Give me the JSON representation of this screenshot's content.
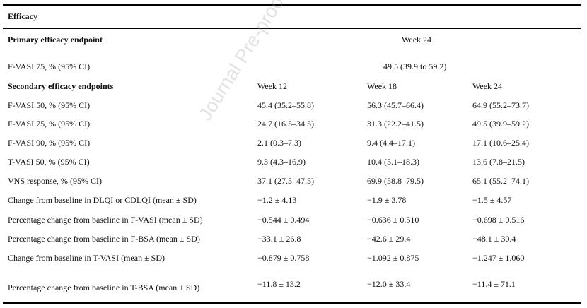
{
  "section_title": "Efficacy",
  "primary": {
    "label": "Primary efficacy endpoint",
    "week_header": "Week 24",
    "row_label": "F-VASI 75, % (95% CI)",
    "row_value": "49.5 (39.9 to 59.2)"
  },
  "secondary": {
    "label": "Secondary efficacy endpoints",
    "headers": [
      "Week 12",
      "Week 18",
      "Week 24"
    ],
    "rows": [
      {
        "label": "F-VASI 50, % (95% CI)",
        "values": [
          "45.4 (35.2–55.8)",
          "56.3 (45.7–66.4)",
          "64.9 (55.2–73.7)"
        ]
      },
      {
        "label": "F-VASI 75, % (95% CI)",
        "values": [
          "24.7 (16.5–34.5)",
          "31.3 (22.2–41.5)",
          "49.5 (39.9–59.2)"
        ]
      },
      {
        "label": "F-VASI 90, % (95% CI)",
        "values": [
          "2.1 (0.3–7.3)",
          "9.4 (4.4–17.1)",
          "17.1 (10.6–25.4)"
        ]
      },
      {
        "label": "T-VASI 50, % (95% CI)",
        "values": [
          "9.3 (4.3–16.9)",
          "10.4 (5.1–18.3)",
          "13.6 (7.8–21.5)"
        ]
      },
      {
        "label": "VNS response, % (95% CI)",
        "values": [
          "37.1 (27.5–47.5)",
          "69.9 (58.8–79.5)",
          "65.1 (55.2–74.1)"
        ]
      },
      {
        "label": "Change from baseline in DLQI or CDLQI (mean ± SD)",
        "values": [
          "−1.2 ± 4.13",
          "−1.9 ± 3.78",
          "−1.5 ± 4.57"
        ]
      },
      {
        "label": "Percentage change from baseline in F-VASI (mean ± SD)",
        "values": [
          "−0.544 ± 0.494",
          "−0.636 ± 0.510",
          "−0.698 ± 0.516"
        ]
      },
      {
        "label": "Percentage change from baseline in F-BSA (mean ± SD)",
        "values": [
          "−33.1 ± 26.8",
          "−42.6 ± 29.4",
          "−48.1 ± 30.4"
        ]
      },
      {
        "label": "Change from baseline in T-VASI (mean ± SD)",
        "values": [
          "−0.879 ± 0.758",
          "−1.092 ± 0.875",
          "−1.247 ± 1.060"
        ]
      },
      {
        "label": "Percentage change from baseline in T-BSA (mean ± SD)",
        "values": [
          "−11.8 ± 13.2",
          "−12.0 ± 33.4",
          "−11.4 ± 71.1"
        ]
      }
    ]
  },
  "watermark": "Journal Pre-proof"
}
